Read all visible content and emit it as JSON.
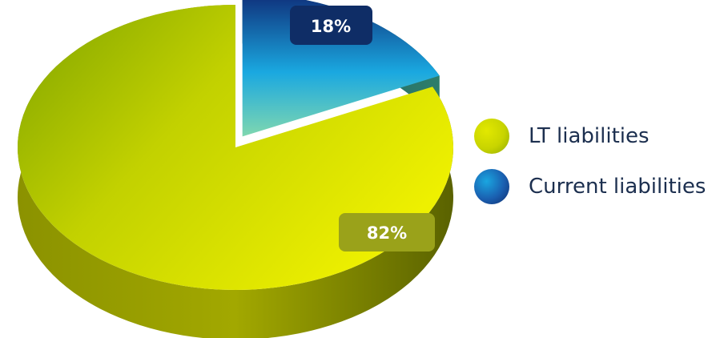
{
  "chart_data": {
    "type": "pie",
    "categories": [
      "LT liabilities",
      "Current liabilities"
    ],
    "values": [
      82,
      18
    ],
    "labels": [
      "82%",
      "18%"
    ],
    "title": "",
    "legend": "right",
    "colors": {
      "LT liabilities": "#d9e000",
      "Current liabilities": "#1a4b9b",
      "label_lt_bg": "#9aa21a",
      "label_current_bg": "#0f2d66"
    }
  }
}
